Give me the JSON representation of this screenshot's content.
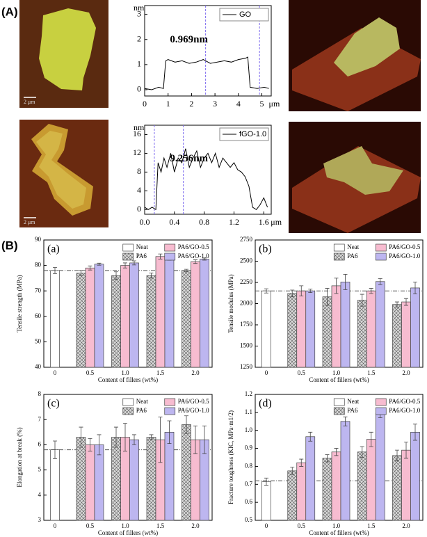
{
  "labels": {
    "panel_a": "(A)",
    "panel_b": "(B)"
  },
  "images": [
    {
      "scale_bar": "2 μm"
    },
    {
      "scale_bar": "2 μm"
    }
  ],
  "chart_data": [
    {
      "type": "line",
      "ylabel": "nm",
      "xlabel": "μm",
      "annotation": "0.969nm",
      "x": [
        0,
        0.3,
        0.6,
        0.8,
        0.9,
        1.0,
        1.3,
        1.6,
        1.9,
        2.2,
        2.5,
        2.8,
        3.1,
        3.4,
        3.7,
        4.0,
        4.3,
        4.4,
        4.5,
        4.8,
        5.1,
        5.3
      ],
      "series": [
        {
          "name": "GO",
          "color": "#000000",
          "values": [
            0.05,
            0,
            0.1,
            0.05,
            1.15,
            1.2,
            1.1,
            1.15,
            1.05,
            1.1,
            1.2,
            1.05,
            1.1,
            1.15,
            1.1,
            1.2,
            1.25,
            1.3,
            0.1,
            0.05,
            0.1,
            0.05
          ]
        }
      ],
      "vlines": [
        2.6,
        4.9
      ],
      "vline_color": "#7b68ee",
      "xlim": [
        0,
        5.4
      ],
      "ylim": [
        -0.25,
        3.35
      ],
      "xticks": [
        0,
        1,
        2,
        3,
        4,
        5
      ],
      "yticks": [
        0,
        1,
        2,
        3
      ],
      "legend": "upper right"
    },
    {
      "type": "line",
      "ylabel": "nm",
      "xlabel": "μm",
      "annotation": "9.256nm",
      "x": [
        0,
        0.05,
        0.1,
        0.15,
        0.18,
        0.22,
        0.26,
        0.3,
        0.35,
        0.4,
        0.45,
        0.5,
        0.55,
        0.6,
        0.65,
        0.7,
        0.75,
        0.8,
        0.85,
        0.9,
        0.95,
        1.0,
        1.05,
        1.1,
        1.15,
        1.2,
        1.25,
        1.3,
        1.35,
        1.4,
        1.45,
        1.5,
        1.55,
        1.6,
        1.65
      ],
      "series": [
        {
          "name": "fGO-1.0",
          "color": "#000000",
          "values": [
            0.5,
            0,
            0.5,
            0,
            10,
            8,
            11,
            9,
            12,
            8,
            11,
            10,
            13,
            9,
            11,
            12.5,
            9,
            11,
            12,
            10,
            12,
            9,
            11,
            10,
            9,
            10,
            8.5,
            8,
            7,
            5,
            0.5,
            0,
            1,
            2.5,
            0.5
          ]
        }
      ],
      "vlines": [
        0.13,
        0.52
      ],
      "vline_color": "#7b68ee",
      "xlim": [
        0,
        1.7
      ],
      "ylim": [
        -1,
        18
      ],
      "xticks": [
        {
          "value": 0,
          "label": "0.0"
        },
        0.4,
        0.8,
        1.2,
        1.6
      ],
      "yticks": [
        0,
        4,
        8,
        12,
        16
      ],
      "legend": "upper right"
    },
    {
      "type": "bar",
      "panel": "(a)",
      "ylabel": "Tensile strength (MPa)",
      "xlabel": "Content of fillers (wt%)",
      "categories": [
        "0",
        "0.5",
        "1.0",
        "1.5",
        "2.0"
      ],
      "series": [
        {
          "name": "Neat",
          "color": "#ffffff",
          "hatch": false,
          "values": [
            78,
            null,
            null,
            null,
            null
          ],
          "errors": [
            1.2,
            null,
            null,
            null,
            null
          ]
        },
        {
          "name": "PA6",
          "color": "#d9d9d9",
          "hatch": true,
          "values": [
            null,
            77,
            76,
            76,
            78
          ],
          "errors": [
            null,
            1,
            1.5,
            1,
            0.5
          ]
        },
        {
          "name": "PA6/GO-0.5",
          "color": "#f7bcd0",
          "hatch": false,
          "values": [
            null,
            79,
            80,
            83.5,
            81.5
          ],
          "errors": [
            null,
            0.8,
            1,
            1,
            0.7
          ]
        },
        {
          "name": "PA6/GO-1.0",
          "color": "#bdb6f0",
          "hatch": false,
          "values": [
            null,
            80.5,
            81,
            82.5,
            82.5
          ],
          "errors": [
            null,
            0.4,
            0.8,
            0.4,
            0.4
          ]
        }
      ],
      "reference": 78,
      "ylim": [
        40,
        90
      ],
      "yticks": [
        40,
        50,
        60,
        70,
        80,
        90
      ],
      "legend": "top"
    },
    {
      "type": "bar",
      "panel": "(b)",
      "ylabel": "Tensile modulus (MPa)",
      "xlabel": "Content of fillers (wt%)",
      "categories": [
        "0",
        "0.5",
        "1.0",
        "1.5",
        "2.0"
      ],
      "series": [
        {
          "name": "Neat",
          "color": "#ffffff",
          "hatch": false,
          "values": [
            2150,
            null,
            null,
            null,
            null
          ],
          "errors": [
            25,
            null,
            null,
            null,
            null
          ]
        },
        {
          "name": "PA6",
          "color": "#d9d9d9",
          "hatch": true,
          "values": [
            null,
            2120,
            2080,
            2040,
            1990
          ],
          "errors": [
            null,
            40,
            100,
            70,
            30
          ]
        },
        {
          "name": "PA6/GO-0.5",
          "color": "#f7bcd0",
          "hatch": false,
          "values": [
            null,
            2150,
            2210,
            2150,
            2020
          ],
          "errors": [
            null,
            60,
            90,
            30,
            40
          ]
        },
        {
          "name": "PA6/GO-1.0",
          "color": "#bdb6f0",
          "hatch": false,
          "values": [
            null,
            2150,
            2255,
            2260,
            2185
          ],
          "errors": [
            null,
            20,
            90,
            35,
            70
          ]
        }
      ],
      "reference": 2150,
      "ylim": [
        1250,
        2750
      ],
      "yticks": [
        1250,
        1500,
        1750,
        2000,
        2250,
        2500,
        2750
      ],
      "legend": "top"
    },
    {
      "type": "bar",
      "panel": "(c)",
      "ylabel": "Elongation at break (%)",
      "xlabel": "Content of fillers (wt%)",
      "categories": [
        "0",
        "0.5",
        "1.0",
        "1.5",
        "2.0"
      ],
      "series": [
        {
          "name": "Neat",
          "color": "#ffffff",
          "hatch": false,
          "values": [
            5.8,
            null,
            null,
            null,
            null
          ],
          "errors": [
            0.35,
            null,
            null,
            null,
            null
          ]
        },
        {
          "name": "PA6",
          "color": "#d9d9d9",
          "hatch": true,
          "values": [
            null,
            6.3,
            6.3,
            6.3,
            6.8
          ],
          "errors": [
            null,
            0.4,
            0.4,
            0.1,
            0.35
          ]
        },
        {
          "name": "PA6/GO-0.5",
          "color": "#f7bcd0",
          "hatch": false,
          "values": [
            null,
            6.0,
            6.3,
            6.2,
            6.2
          ],
          "errors": [
            null,
            0.25,
            0.55,
            0.9,
            0.55
          ]
        },
        {
          "name": "PA6/GO-1.0",
          "color": "#bdb6f0",
          "hatch": false,
          "values": [
            null,
            6.0,
            6.2,
            6.5,
            6.2
          ],
          "errors": [
            null,
            0.4,
            0.2,
            0.45,
            0.55
          ]
        }
      ],
      "reference": 5.8,
      "ylim": [
        3,
        8
      ],
      "yticks": [
        3,
        4,
        5,
        6,
        7,
        8
      ],
      "legend": "top"
    },
    {
      "type": "bar",
      "panel": "(d)",
      "ylabel": "Fracture toughness (KIC, MPa·m1/2)",
      "xlabel": "Content of fillers (wt%)",
      "categories": [
        "0",
        "0.5",
        "1.0",
        "1.5",
        "2.0"
      ],
      "series": [
        {
          "name": "Neat",
          "color": "#ffffff",
          "hatch": false,
          "values": [
            0.715,
            null,
            null,
            null,
            null
          ],
          "errors": [
            0.02,
            null,
            null,
            null,
            null
          ]
        },
        {
          "name": "PA6",
          "color": "#d9d9d9",
          "hatch": true,
          "values": [
            null,
            0.775,
            0.845,
            0.88,
            0.86
          ],
          "errors": [
            null,
            0.02,
            0.02,
            0.03,
            0.03
          ]
        },
        {
          "name": "PA6/GO-0.5",
          "color": "#f7bcd0",
          "hatch": false,
          "values": [
            null,
            0.82,
            0.88,
            0.95,
            0.89
          ],
          "errors": [
            null,
            0.02,
            0.02,
            0.04,
            0.045
          ]
        },
        {
          "name": "PA6/GO-1.0",
          "color": "#bdb6f0",
          "hatch": false,
          "values": [
            null,
            0.965,
            1.05,
            1.095,
            0.99
          ],
          "errors": [
            null,
            0.025,
            0.025,
            0.025,
            0.045
          ]
        }
      ],
      "reference": 0.72,
      "ylim": [
        0.5,
        1.2
      ],
      "yticks": [
        0.5,
        0.6,
        0.7,
        0.8,
        0.9,
        {
          "value": 1,
          "label": "1.0"
        },
        1.1,
        1.2
      ],
      "legend": "top"
    }
  ]
}
